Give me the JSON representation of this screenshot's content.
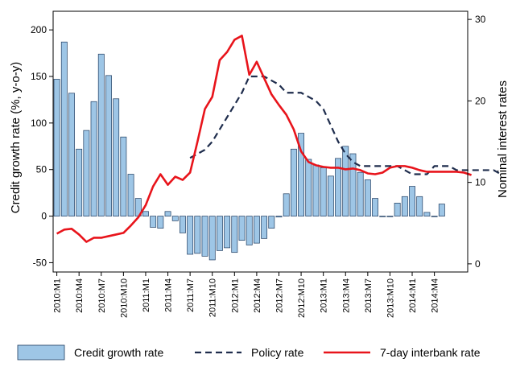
{
  "chart_data": {
    "type": "bar",
    "title": "",
    "ylabel_left": "Credit growth rate (%, y-o-y)",
    "ylabel_right": "Nominal interest rates",
    "ylim_left": [
      -60,
      220
    ],
    "ylim_right": [
      -1,
      31
    ],
    "yticks_left": [
      "200",
      "150",
      "100",
      "50",
      "0",
      "-50"
    ],
    "ytick_values_left": [
      200,
      150,
      100,
      50,
      0,
      -50
    ],
    "yticks_right": [
      "30",
      "20",
      "10",
      "0"
    ],
    "ytick_values_right": [
      30,
      20,
      10,
      0
    ],
    "x_tick_labels": [
      "2010:M1",
      "2010:M4",
      "2010:M7",
      "2010:M10",
      "2011:M1",
      "2011:M4",
      "2011:M7",
      "2011:M10",
      "2012:M1",
      "2012:M4",
      "2012:M7",
      "2012:M10",
      "2013:M1",
      "2013:M4",
      "2013:M7",
      "2013:M10",
      "2014:M1",
      "2014:M4"
    ],
    "x_tick_months": [
      0,
      3,
      6,
      9,
      12,
      15,
      18,
      21,
      24,
      27,
      30,
      33,
      36,
      39,
      42,
      45,
      48,
      51
    ],
    "months": 56,
    "grid": false,
    "legend_position": "bottom",
    "series": [
      {
        "name": "Credit growth rate",
        "type": "bar",
        "axis": "left",
        "color": "#9ec6e6",
        "values": [
          147,
          187,
          132,
          72,
          92,
          123,
          174,
          151,
          126,
          85,
          45,
          19,
          5,
          -12,
          -13,
          5,
          -5,
          -18,
          -41,
          -40,
          -43,
          -47,
          -37,
          -34,
          -39,
          -26,
          -31,
          -29,
          -24,
          -13,
          -1,
          24,
          72,
          89,
          61,
          55,
          52,
          43,
          62,
          75,
          67,
          47,
          39,
          19,
          0,
          0,
          14,
          21,
          32,
          21,
          4,
          0,
          13
        ]
      },
      {
        "name": "Policy rate",
        "type": "line",
        "axis": "right",
        "color": "#1f2d4d",
        "dash": "dashed",
        "start_month": 18,
        "values": [
          13,
          13.5,
          14,
          15,
          16.5,
          18,
          19.5,
          21,
          23,
          23,
          23,
          22.5,
          22,
          21,
          21,
          21,
          20.5,
          20,
          19,
          17,
          15,
          13.5,
          12.5,
          12,
          12,
          12,
          12,
          12,
          12,
          11.5,
          11,
          11,
          11,
          12,
          12,
          12,
          11.5,
          11.5,
          11.5,
          11.5,
          11.5,
          11.5,
          11
        ]
      },
      {
        "name": "7-day interbank rate",
        "type": "line",
        "axis": "right",
        "color": "#e8141b",
        "start_month": 0,
        "values": [
          3.7,
          4.2,
          4.3,
          3.6,
          2.7,
          3.2,
          3.2,
          3.4,
          3.6,
          3.8,
          4.7,
          5.7,
          7.2,
          9.5,
          11,
          9.7,
          10.7,
          10.3,
          11.2,
          15,
          19,
          20.5,
          25,
          26,
          27.5,
          28,
          23.2,
          24.8,
          22.8,
          20.8,
          19.5,
          18.3,
          16.5,
          13.8,
          12.5,
          12.1,
          11.9,
          11.8,
          11.8,
          11.6,
          11.7,
          11.5,
          11.1,
          11,
          11.2,
          11.8,
          12,
          12,
          11.8,
          11.5,
          11.3,
          11.3,
          11.3,
          11.3,
          11.3,
          11.2,
          10.9
        ]
      }
    ]
  }
}
